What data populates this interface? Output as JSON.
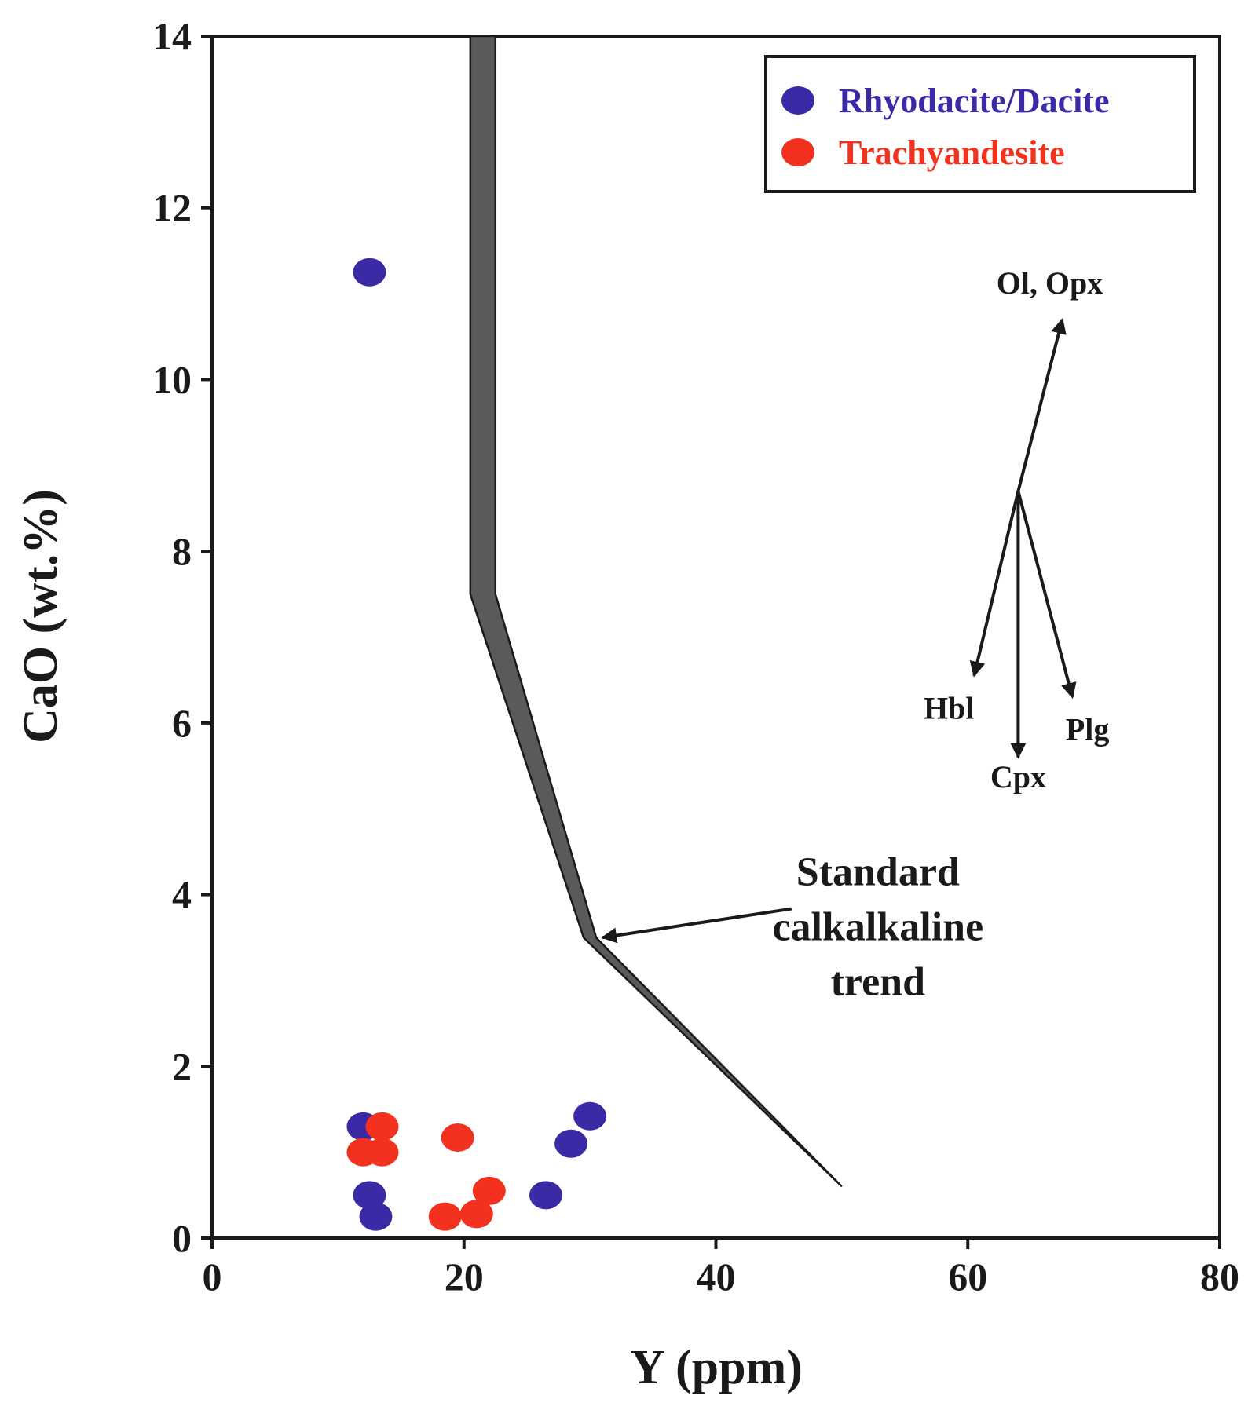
{
  "chart_data": {
    "type": "scatter",
    "title": "",
    "xlabel": "Y (ppm)",
    "ylabel": "CaO (wt.%)",
    "xlim": [
      0,
      80
    ],
    "ylim": [
      0,
      14
    ],
    "x_ticks": [
      0,
      20,
      40,
      60,
      80
    ],
    "y_ticks": [
      0,
      2,
      4,
      6,
      8,
      10,
      12,
      14
    ],
    "grid": false,
    "legend_position": "top-right",
    "series": [
      {
        "name": "Rhyodacite/Dacite",
        "color": "#3a2aa6",
        "points": [
          [
            12.5,
            11.25
          ],
          [
            12,
            1.3
          ],
          [
            12.5,
            0.5
          ],
          [
            13,
            0.25
          ],
          [
            26.5,
            0.5
          ],
          [
            28.5,
            1.1
          ],
          [
            30,
            1.42
          ]
        ]
      },
      {
        "name": "Trachyandesite",
        "color": "#f2321e",
        "points": [
          [
            12,
            1.0
          ],
          [
            13.5,
            1.3
          ],
          [
            13.5,
            1.0
          ],
          [
            18.5,
            0.25
          ],
          [
            19.5,
            1.17
          ],
          [
            21,
            0.28
          ],
          [
            22,
            0.55
          ]
        ]
      }
    ],
    "trend": {
      "label_lines": [
        "Standard",
        "calkalkaline",
        "trend"
      ],
      "color": "#5a5a5a",
      "left_edge": [
        [
          20.5,
          14
        ],
        [
          20.5,
          7.5
        ],
        [
          29.5,
          3.5
        ],
        [
          50,
          0.6
        ]
      ],
      "right_edge": [
        [
          50,
          0.6
        ],
        [
          30.5,
          3.5
        ],
        [
          22.5,
          7.5
        ],
        [
          22.5,
          14
        ]
      ],
      "label_anchor": [
        48.5,
        4.0
      ],
      "arrow_target": [
        31,
        3.5
      ]
    },
    "vectors": {
      "origin": [
        64,
        8.7
      ],
      "items": [
        {
          "label": "Ol, Opx",
          "tip": [
            67.5,
            10.7
          ],
          "label_pos": [
            66.5,
            11.0
          ]
        },
        {
          "label": "Hbl",
          "tip": [
            60.5,
            6.55
          ],
          "label_pos": [
            58.5,
            6.05
          ]
        },
        {
          "label": "Cpx",
          "tip": [
            64,
            5.6
          ],
          "label_pos": [
            64,
            5.25
          ]
        },
        {
          "label": "Plg",
          "tip": [
            68.3,
            6.3
          ],
          "label_pos": [
            69.5,
            5.8
          ]
        }
      ]
    }
  }
}
